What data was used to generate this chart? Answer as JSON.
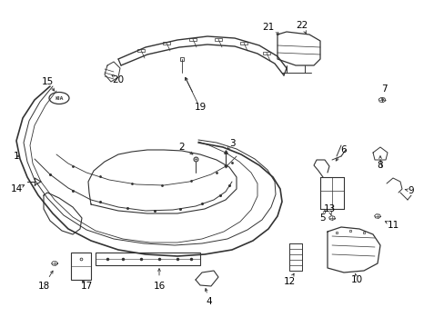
{
  "bg_color": "#ffffff",
  "line_color": "#333333",
  "text_color": "#000000",
  "fig_width": 4.89,
  "fig_height": 3.6,
  "dpi": 100
}
